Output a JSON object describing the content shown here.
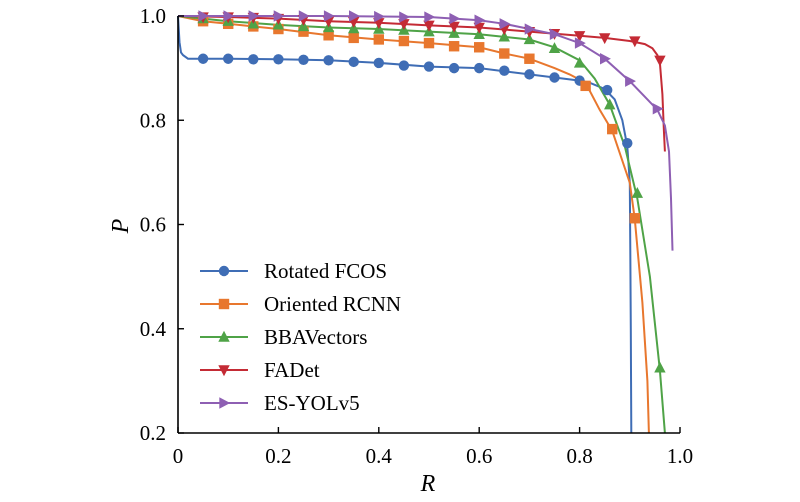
{
  "chart_data": {
    "type": "line",
    "title": "",
    "xlabel": "R",
    "ylabel": "P",
    "xlim": [
      0,
      1.0
    ],
    "ylim": [
      0.2,
      1.0
    ],
    "x_ticks": [
      "0",
      "0.2",
      "0.4",
      "0.6",
      "0.8",
      "1.0"
    ],
    "y_ticks": [
      "0.2",
      "0.4",
      "0.6",
      "0.8",
      "1.0"
    ],
    "grid": false,
    "legend_position": "lower-left",
    "series": [
      {
        "name": "Rotated FCOS",
        "color": "#3f6db5",
        "marker": "circle",
        "line": [
          [
            0.0,
            1.0
          ],
          [
            0.003,
            0.95
          ],
          [
            0.006,
            0.93
          ],
          [
            0.01,
            0.925
          ],
          [
            0.02,
            0.918
          ],
          [
            0.1,
            0.918
          ],
          [
            0.2,
            0.917
          ],
          [
            0.3,
            0.915
          ],
          [
            0.4,
            0.91
          ],
          [
            0.5,
            0.903
          ],
          [
            0.6,
            0.9
          ],
          [
            0.7,
            0.888
          ],
          [
            0.75,
            0.882
          ],
          [
            0.8,
            0.876
          ],
          [
            0.82,
            0.872
          ],
          [
            0.85,
            0.86
          ],
          [
            0.87,
            0.84
          ],
          [
            0.885,
            0.8
          ],
          [
            0.895,
            0.75
          ],
          [
            0.9,
            0.68
          ],
          [
            0.901,
            0.55
          ],
          [
            0.902,
            0.4
          ],
          [
            0.903,
            0.2
          ]
        ],
        "markers": [
          [
            0.05,
            0.918
          ],
          [
            0.1,
            0.918
          ],
          [
            0.15,
            0.917
          ],
          [
            0.2,
            0.917
          ],
          [
            0.25,
            0.916
          ],
          [
            0.3,
            0.915
          ],
          [
            0.35,
            0.912
          ],
          [
            0.4,
            0.91
          ],
          [
            0.45,
            0.905
          ],
          [
            0.5,
            0.903
          ],
          [
            0.55,
            0.9
          ],
          [
            0.6,
            0.9
          ],
          [
            0.65,
            0.895
          ],
          [
            0.7,
            0.888
          ],
          [
            0.75,
            0.882
          ],
          [
            0.8,
            0.876
          ],
          [
            0.855,
            0.858
          ],
          [
            0.895,
            0.756
          ]
        ]
      },
      {
        "name": "Oriented RCNN",
        "color": "#e8772e",
        "marker": "square",
        "line": [
          [
            0.0,
            1.0
          ],
          [
            0.05,
            0.99
          ],
          [
            0.1,
            0.985
          ],
          [
            0.2,
            0.975
          ],
          [
            0.3,
            0.963
          ],
          [
            0.4,
            0.955
          ],
          [
            0.5,
            0.948
          ],
          [
            0.6,
            0.94
          ],
          [
            0.65,
            0.928
          ],
          [
            0.7,
            0.918
          ],
          [
            0.75,
            0.9
          ],
          [
            0.78,
            0.888
          ],
          [
            0.8,
            0.878
          ],
          [
            0.815,
            0.866
          ],
          [
            0.84,
            0.82
          ],
          [
            0.865,
            0.78
          ],
          [
            0.9,
            0.68
          ],
          [
            0.91,
            0.61
          ],
          [
            0.925,
            0.45
          ],
          [
            0.935,
            0.3
          ],
          [
            0.938,
            0.2
          ]
        ],
        "markers": [
          [
            0.05,
            0.99
          ],
          [
            0.1,
            0.985
          ],
          [
            0.15,
            0.98
          ],
          [
            0.2,
            0.975
          ],
          [
            0.25,
            0.97
          ],
          [
            0.3,
            0.963
          ],
          [
            0.35,
            0.958
          ],
          [
            0.4,
            0.955
          ],
          [
            0.45,
            0.952
          ],
          [
            0.5,
            0.948
          ],
          [
            0.55,
            0.942
          ],
          [
            0.6,
            0.94
          ],
          [
            0.65,
            0.928
          ],
          [
            0.7,
            0.918
          ],
          [
            0.812,
            0.866
          ],
          [
            0.865,
            0.783
          ],
          [
            0.91,
            0.612
          ]
        ]
      },
      {
        "name": "BBAVectors",
        "color": "#4fa347",
        "marker": "triangle-up",
        "line": [
          [
            0.0,
            1.0
          ],
          [
            0.05,
            0.995
          ],
          [
            0.1,
            0.99
          ],
          [
            0.2,
            0.983
          ],
          [
            0.3,
            0.978
          ],
          [
            0.4,
            0.975
          ],
          [
            0.5,
            0.97
          ],
          [
            0.6,
            0.965
          ],
          [
            0.7,
            0.955
          ],
          [
            0.75,
            0.94
          ],
          [
            0.8,
            0.915
          ],
          [
            0.83,
            0.88
          ],
          [
            0.86,
            0.83
          ],
          [
            0.89,
            0.75
          ],
          [
            0.915,
            0.65
          ],
          [
            0.94,
            0.5
          ],
          [
            0.96,
            0.32
          ],
          [
            0.97,
            0.2
          ]
        ],
        "markers": [
          [
            0.05,
            0.995
          ],
          [
            0.1,
            0.99
          ],
          [
            0.15,
            0.985
          ],
          [
            0.2,
            0.983
          ],
          [
            0.25,
            0.98
          ],
          [
            0.3,
            0.978
          ],
          [
            0.35,
            0.976
          ],
          [
            0.4,
            0.975
          ],
          [
            0.45,
            0.973
          ],
          [
            0.5,
            0.97
          ],
          [
            0.55,
            0.967
          ],
          [
            0.6,
            0.965
          ],
          [
            0.65,
            0.96
          ],
          [
            0.7,
            0.955
          ],
          [
            0.75,
            0.938
          ],
          [
            0.8,
            0.91
          ],
          [
            0.86,
            0.83
          ],
          [
            0.915,
            0.66
          ],
          [
            0.96,
            0.325
          ]
        ]
      },
      {
        "name": "FADet",
        "color": "#c42b35",
        "marker": "triangle-down",
        "line": [
          [
            0.0,
            1.0
          ],
          [
            0.1,
            0.998
          ],
          [
            0.2,
            0.995
          ],
          [
            0.3,
            0.99
          ],
          [
            0.4,
            0.987
          ],
          [
            0.5,
            0.982
          ],
          [
            0.6,
            0.978
          ],
          [
            0.7,
            0.97
          ],
          [
            0.8,
            0.962
          ],
          [
            0.85,
            0.958
          ],
          [
            0.9,
            0.952
          ],
          [
            0.93,
            0.946
          ],
          [
            0.945,
            0.938
          ],
          [
            0.955,
            0.925
          ],
          [
            0.96,
            0.91
          ],
          [
            0.965,
            0.85
          ],
          [
            0.968,
            0.78
          ],
          [
            0.97,
            0.74
          ]
        ],
        "markers": [
          [
            0.05,
            0.998
          ],
          [
            0.1,
            0.998
          ],
          [
            0.15,
            0.997
          ],
          [
            0.2,
            0.995
          ],
          [
            0.25,
            0.993
          ],
          [
            0.3,
            0.99
          ],
          [
            0.35,
            0.989
          ],
          [
            0.4,
            0.987
          ],
          [
            0.45,
            0.985
          ],
          [
            0.5,
            0.982
          ],
          [
            0.55,
            0.98
          ],
          [
            0.6,
            0.978
          ],
          [
            0.65,
            0.975
          ],
          [
            0.7,
            0.97
          ],
          [
            0.75,
            0.966
          ],
          [
            0.8,
            0.962
          ],
          [
            0.85,
            0.958
          ],
          [
            0.91,
            0.952
          ],
          [
            0.96,
            0.915
          ]
        ]
      },
      {
        "name": "ES-YOLv5",
        "color": "#8e5fb3",
        "marker": "triangle-right",
        "line": [
          [
            0.0,
            1.0
          ],
          [
            0.1,
            1.0
          ],
          [
            0.2,
            1.0
          ],
          [
            0.3,
            1.0
          ],
          [
            0.4,
            0.999
          ],
          [
            0.5,
            0.998
          ],
          [
            0.6,
            0.992
          ],
          [
            0.65,
            0.985
          ],
          [
            0.7,
            0.975
          ],
          [
            0.75,
            0.965
          ],
          [
            0.8,
            0.948
          ],
          [
            0.85,
            0.918
          ],
          [
            0.9,
            0.875
          ],
          [
            0.93,
            0.845
          ],
          [
            0.955,
            0.82
          ],
          [
            0.97,
            0.79
          ],
          [
            0.978,
            0.74
          ],
          [
            0.982,
            0.65
          ],
          [
            0.985,
            0.55
          ]
        ],
        "markers": [
          [
            0.05,
            1.0
          ],
          [
            0.1,
            1.0
          ],
          [
            0.15,
            1.0
          ],
          [
            0.2,
            1.0
          ],
          [
            0.25,
            1.0
          ],
          [
            0.3,
            1.0
          ],
          [
            0.35,
            1.0
          ],
          [
            0.4,
            0.999
          ],
          [
            0.45,
            0.998
          ],
          [
            0.5,
            0.998
          ],
          [
            0.55,
            0.995
          ],
          [
            0.6,
            0.992
          ],
          [
            0.65,
            0.985
          ],
          [
            0.7,
            0.975
          ],
          [
            0.75,
            0.965
          ],
          [
            0.8,
            0.948
          ],
          [
            0.85,
            0.918
          ],
          [
            0.9,
            0.875
          ],
          [
            0.955,
            0.822
          ]
        ]
      }
    ]
  }
}
